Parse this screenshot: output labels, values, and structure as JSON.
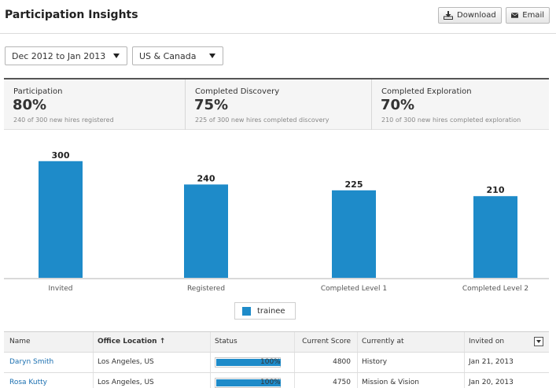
{
  "header": {
    "title": "Participation Insights",
    "download_label": "Download",
    "email_label": "Email",
    "download_icon": "download-icon",
    "email_icon": "envelope-icon"
  },
  "filters": {
    "date_range": "Dec 2012 to Jan 2013",
    "region": "US & Canada"
  },
  "stats": [
    {
      "label": "Participation",
      "value": "80%",
      "sub": "240 of 300 new hires registered"
    },
    {
      "label": "Completed Discovery",
      "value": "75%",
      "sub": "225 of 300 new hires completed discovery"
    },
    {
      "label": "Completed Exploration",
      "value": "70%",
      "sub": "210 of 300 new hires completed exploration"
    }
  ],
  "chart_data": {
    "type": "bar",
    "categories": [
      "Invited",
      "Registered",
      "Completed Level 1",
      "Completed Level 2"
    ],
    "series": [
      {
        "name": "trainee",
        "values": [
          300,
          240,
          225,
          210
        ],
        "color": "#1e8bc9"
      }
    ],
    "ylim": [
      0,
      340
    ],
    "data_labels": [
      "300",
      "240",
      "225",
      "210"
    ],
    "legend_position": "bottom-center",
    "grid": false
  },
  "legend": {
    "label": "trainee",
    "color": "#1e8bc9"
  },
  "table": {
    "columns": {
      "name": "Name",
      "office": "Office Location",
      "office_sort_icon": "arrow-up-icon",
      "status": "Status",
      "score": "Current Score",
      "current": "Currently at",
      "invited": "Invited on"
    },
    "rows": [
      {
        "name": "Daryn Smith",
        "office": "Los Angeles, US",
        "status_pct": 100,
        "status_text": "100%",
        "score": "4800",
        "current": "History",
        "invited": "Jan 21, 2013"
      },
      {
        "name": "Rosa Kutty",
        "office": "Los Angeles, US",
        "status_pct": 100,
        "status_text": "100%",
        "score": "4750",
        "current": "Mission & Vision",
        "invited": "Jan 20, 2013"
      }
    ]
  }
}
